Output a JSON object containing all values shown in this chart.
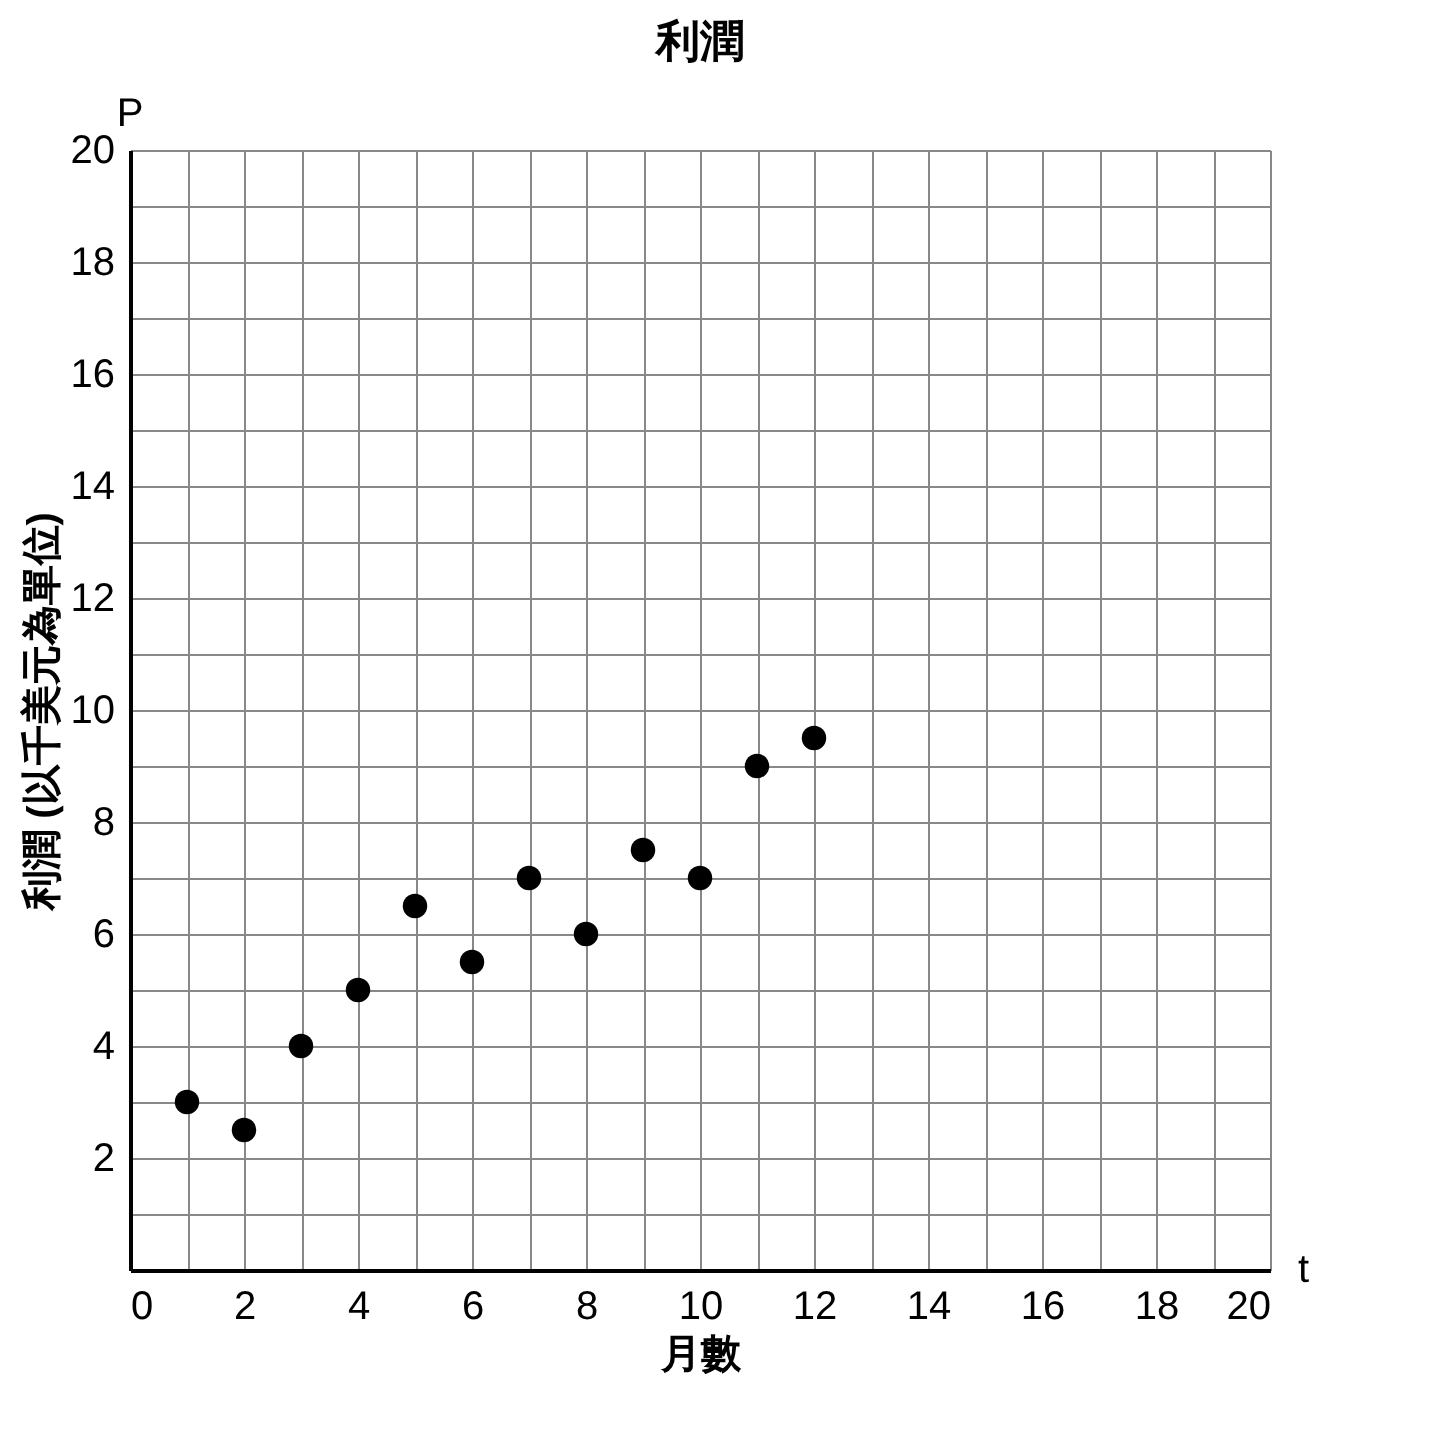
{
  "chart_data": {
    "type": "scatter",
    "title": "利潤",
    "xlabel": "月數",
    "ylabel": "利潤 (以千美元為單位)",
    "x": [
      1,
      2,
      3,
      4,
      5,
      6,
      7,
      8,
      9,
      10,
      11,
      12
    ],
    "series": [
      {
        "color": "#000000",
        "values": [
          3,
          2.5,
          4,
          5,
          6.5,
          5.5,
          7,
          6,
          7.5,
          7,
          9,
          9.5
        ]
      }
    ],
    "xlim": [
      0,
      20
    ],
    "ylim": [
      0,
      20
    ],
    "xticks": [
      0,
      {
        "value": 1,
        "label": null
      },
      2,
      {
        "value": 3,
        "label": null
      },
      4,
      {
        "value": 5,
        "label": null
      },
      6,
      {
        "value": 7,
        "label": null
      },
      8,
      {
        "value": 9,
        "label": null
      },
      10,
      {
        "value": 11,
        "label": null
      },
      12,
      {
        "value": 13,
        "label": null
      },
      14,
      {
        "value": 15,
        "label": null
      },
      16,
      {
        "value": 17,
        "label": null
      },
      18,
      {
        "value": 19,
        "label": null
      },
      20
    ],
    "yticks": [
      {
        "value": 0,
        "label": null
      },
      {
        "value": 1,
        "label": null
      },
      2,
      {
        "value": 3,
        "label": null
      },
      4,
      {
        "value": 5,
        "label": null
      },
      6,
      {
        "value": 7,
        "label": null
      },
      8,
      {
        "value": 9,
        "label": null
      },
      10,
      {
        "value": 11,
        "label": null
      },
      12,
      {
        "value": 13,
        "label": null
      },
      14,
      {
        "value": 15,
        "label": null
      },
      16,
      {
        "value": 17,
        "label": null
      },
      18,
      {
        "value": 19,
        "label": null
      },
      20
    ],
    "annotations": [
      "P",
      "t"
    ],
    "grid": true,
    "marker": "circle",
    "legend": false
  }
}
